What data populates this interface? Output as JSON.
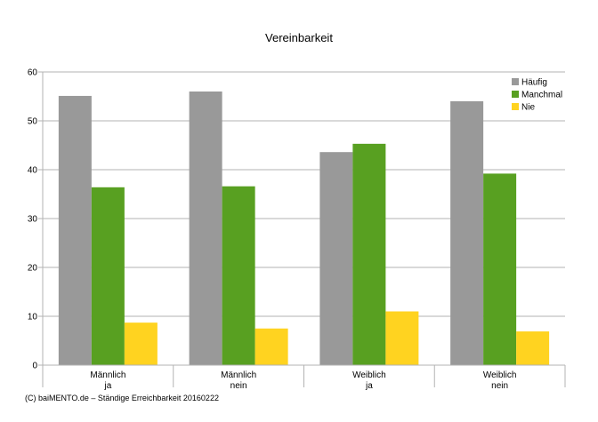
{
  "chart_data": {
    "type": "bar",
    "title": "Vereinbarkeit",
    "categories": [
      [
        "Männlich",
        "ja"
      ],
      [
        "Männlich",
        "nein"
      ],
      [
        "Weiblich",
        "ja"
      ],
      [
        "Weiblich",
        "nein"
      ]
    ],
    "series": [
      {
        "name": "Häufig",
        "color": "#999999",
        "values": [
          55.1,
          56.0,
          43.6,
          54.0
        ]
      },
      {
        "name": "Manchmal",
        "color": "#58a021",
        "values": [
          36.4,
          36.6,
          45.3,
          39.2
        ]
      },
      {
        "name": "Nie",
        "color": "#ffd320",
        "values": [
          8.7,
          7.5,
          11.0,
          6.9
        ]
      }
    ],
    "ylim": [
      0,
      60
    ],
    "yticks": [
      0,
      10,
      20,
      30,
      40,
      50,
      60
    ],
    "grid": true,
    "legend_position": "top-right",
    "xlabel": "",
    "ylabel": ""
  },
  "footer": {
    "credit": "(C) baiMENTO.de – Ständige Erreichbarkeit 20160222"
  }
}
